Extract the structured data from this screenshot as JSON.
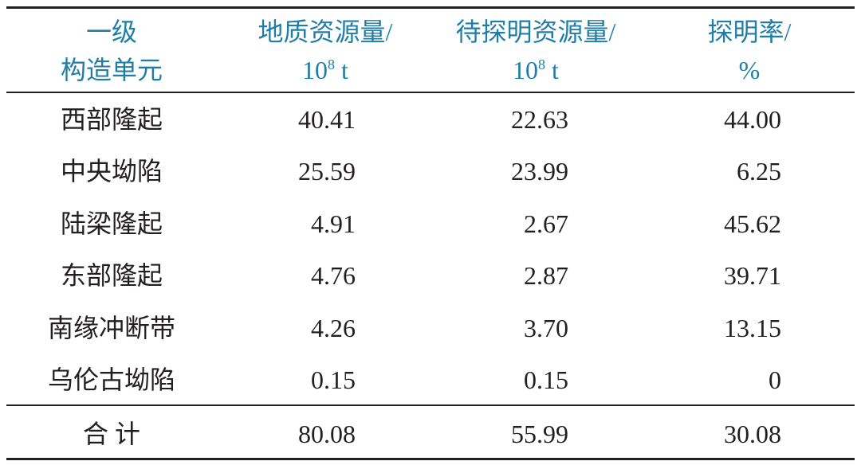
{
  "table": {
    "header": [
      {
        "lines": [
          "一级",
          "构造单元"
        ]
      },
      {
        "line1": "地质资源量/",
        "base": "10",
        "exp": "8",
        "unit": "t"
      },
      {
        "line1": "待探明资源量/",
        "base": "10",
        "exp": "8",
        "unit": "t"
      },
      {
        "lines": [
          "探明率/",
          "%"
        ]
      }
    ],
    "rows": [
      [
        "西部隆起",
        "40.41",
        "22.63",
        "44.00"
      ],
      [
        "中央坳陷",
        "25.59",
        "23.99",
        "6.25"
      ],
      [
        "陆梁隆起",
        "4.91",
        "2.67",
        "45.62"
      ],
      [
        "东部隆起",
        "4.76",
        "2.87",
        "39.71"
      ],
      [
        "南缘冲断带",
        "4.26",
        "3.70",
        "13.15"
      ],
      [
        "乌伦古坳陷",
        "0.15",
        "0.15",
        "0"
      ]
    ],
    "total": [
      "合 计",
      "80.08",
      "55.99",
      "30.08"
    ]
  }
}
